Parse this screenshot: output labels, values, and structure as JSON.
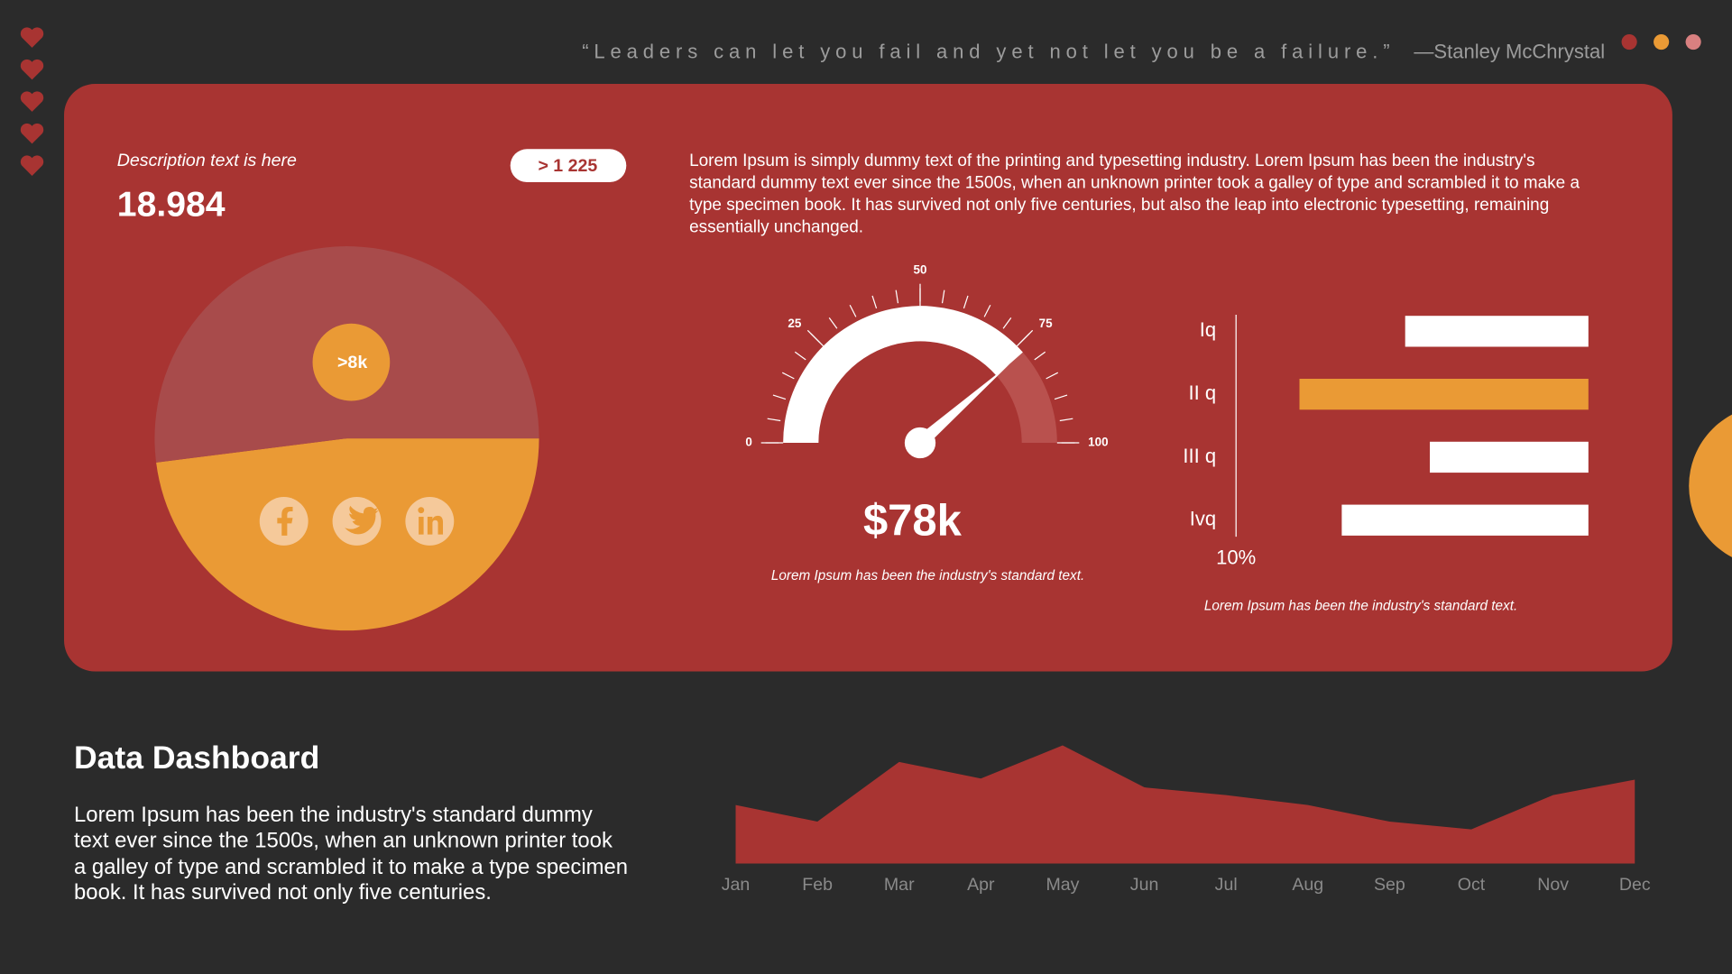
{
  "quote": "“Leaders can let you fail and yet not let you be a failure.”",
  "author": "—Stanley McChrystal",
  "card": {
    "description": "Description text is here",
    "value": "18.984",
    "badge": "> 1 225",
    "paragraph": [
      "Lorem Ipsum is simply dummy text of the printing and typesetting industry. Lorem Ipsum has been the industry's",
      "standard dummy text ever since the 1500s, when an unknown printer took a galley of type and scrambled it to make a",
      "type specimen book. It has survived not only five centuries, but also the leap into electronic typesetting, remaining",
      "essentially unchanged."
    ]
  },
  "chart_data": [
    {
      "type": "pie",
      "values": [
        48,
        52
      ],
      "colors": [
        "#ea9a35",
        "#a84b4b"
      ],
      "annotation": ">8k"
    },
    {
      "type": "gauge",
      "value": 77,
      "ylim": [
        0,
        100
      ],
      "yticks": [
        0,
        25,
        50,
        75,
        100
      ],
      "color": "#ffffff",
      "track_color": "#b9514e",
      "headline": "$78k",
      "caption": "Lorem Ipsum has been the industry's standard text."
    },
    {
      "type": "bar",
      "orientation": "horizontal",
      "categories": [
        "Iq",
        "II q",
        "III q",
        "Ivq"
      ],
      "values": [
        5.2,
        8.2,
        4.5,
        7.0
      ],
      "colors": [
        "#ffffff",
        "#ea9a35",
        "#ffffff",
        "#ffffff"
      ],
      "xlim": [
        0,
        10
      ],
      "xticks": [
        {
          "value": 10,
          "label": "10%"
        }
      ],
      "x_reversed": true,
      "caption": "Lorem Ipsum has been the industry's standard text."
    },
    {
      "type": "area",
      "categories": [
        "Jan",
        "Feb",
        "Mar",
        "Apr",
        "May",
        "Jun",
        "Jul",
        "Aug",
        "Sep",
        "Oct",
        "Nov",
        "Dec"
      ],
      "values": [
        53,
        38,
        92,
        77,
        107,
        69,
        62,
        53,
        38,
        31,
        62,
        76
      ],
      "color": "#a83432",
      "ylim": [
        0,
        120
      ]
    }
  ],
  "footer": {
    "title": "Data Dashboard",
    "paragraph": [
      "Lorem Ipsum has been the industry's standard dummy",
      "text ever since the 1500s, when an unknown printer took",
      "a galley of type and scrambled it to make a type specimen",
      "book. It has survived not only five centuries."
    ]
  }
}
